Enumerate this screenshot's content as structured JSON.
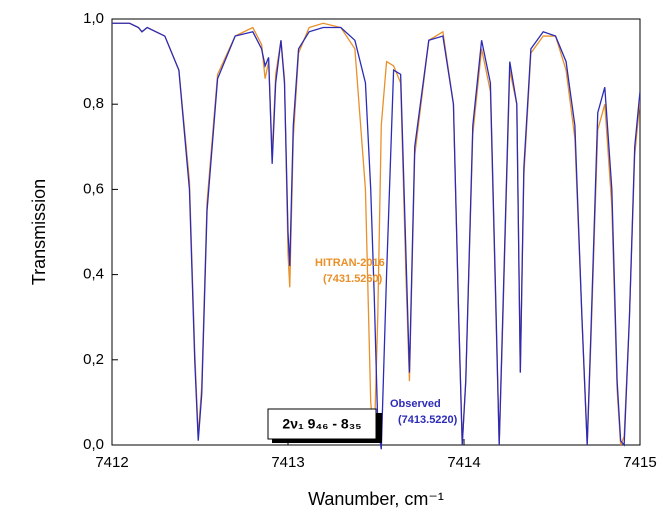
{
  "chart_data": {
    "type": "line",
    "xlabel": "Wanumber, cm⁻¹",
    "ylabel": "Transmission",
    "xlim": [
      7412,
      7415
    ],
    "xticks": [
      7412,
      7413,
      7414,
      7415
    ],
    "ylim": [
      0,
      1
    ],
    "yticks": [
      {
        "value": 0,
        "label": "0,0"
      },
      {
        "value": 0.2,
        "label": "0,2"
      },
      {
        "value": 0.4,
        "label": "0,4"
      },
      {
        "value": 0.6,
        "label": "0,6"
      },
      {
        "value": 0.8,
        "label": "0,8"
      },
      {
        "value": 1,
        "label": "1,0"
      }
    ],
    "x": [
      7412.0,
      7412.1,
      7412.15,
      7412.17,
      7412.2,
      7412.3,
      7412.38,
      7412.44,
      7412.47,
      7412.49,
      7412.51,
      7412.54,
      7412.6,
      7412.7,
      7412.8,
      7412.85,
      7412.87,
      7412.89,
      7412.91,
      7412.93,
      7412.96,
      7412.98,
      7413.0,
      7413.01,
      7413.03,
      7413.06,
      7413.12,
      7413.2,
      7413.3,
      7413.38,
      7413.44,
      7413.47,
      7413.49,
      7413.51,
      7413.53,
      7413.56,
      7413.6,
      7413.64,
      7413.67,
      7413.69,
      7413.72,
      7413.8,
      7413.88,
      7413.94,
      7413.97,
      7413.99,
      7414.01,
      7414.05,
      7414.1,
      7414.15,
      7414.18,
      7414.2,
      7414.22,
      7414.26,
      7414.3,
      7414.32,
      7414.34,
      7414.38,
      7414.45,
      7414.52,
      7414.58,
      7414.63,
      7414.67,
      7414.7,
      7414.72,
      7414.76,
      7414.8,
      7414.84,
      7414.87,
      7414.89,
      7414.91,
      7414.94,
      7414.97,
      7415.0
    ],
    "series": [
      {
        "color": "#e8902a",
        "values": [
          0.99,
          0.99,
          0.98,
          0.97,
          0.98,
          0.96,
          0.88,
          0.62,
          0.22,
          0.02,
          0.14,
          0.57,
          0.87,
          0.96,
          0.98,
          0.94,
          0.86,
          0.9,
          0.68,
          0.87,
          0.95,
          0.86,
          0.45,
          0.37,
          0.72,
          0.92,
          0.98,
          0.99,
          0.98,
          0.93,
          0.6,
          0.1,
          0.01,
          0.3,
          0.75,
          0.9,
          0.89,
          0.85,
          0.4,
          0.15,
          0.68,
          0.95,
          0.97,
          0.8,
          0.3,
          0.0,
          0.15,
          0.73,
          0.93,
          0.83,
          0.33,
          0.0,
          0.28,
          0.88,
          0.8,
          0.17,
          0.63,
          0.92,
          0.96,
          0.96,
          0.88,
          0.72,
          0.3,
          0.0,
          0.23,
          0.74,
          0.8,
          0.56,
          0.13,
          0.0,
          0.02,
          0.3,
          0.68,
          0.81
        ]
      },
      {
        "color": "#2b2bb8",
        "values": [
          0.99,
          0.99,
          0.98,
          0.97,
          0.98,
          0.96,
          0.88,
          0.6,
          0.2,
          0.01,
          0.12,
          0.55,
          0.86,
          0.96,
          0.97,
          0.93,
          0.89,
          0.91,
          0.66,
          0.85,
          0.95,
          0.85,
          0.5,
          0.42,
          0.75,
          0.93,
          0.97,
          0.98,
          0.98,
          0.95,
          0.85,
          0.6,
          0.35,
          0.05,
          -0.01,
          0.4,
          0.88,
          0.87,
          0.45,
          0.17,
          0.7,
          0.95,
          0.96,
          0.8,
          0.3,
          0.0,
          0.15,
          0.75,
          0.95,
          0.85,
          0.35,
          0.0,
          0.3,
          0.9,
          0.8,
          0.17,
          0.65,
          0.93,
          0.97,
          0.96,
          0.9,
          0.75,
          0.3,
          0.0,
          0.25,
          0.78,
          0.84,
          0.6,
          0.15,
          0.01,
          0.0,
          0.3,
          0.7,
          0.83
        ]
      }
    ],
    "annotations": [
      {
        "lines": [
          "HITRAN-2016",
          "(7431.5260)"
        ],
        "color": "#e8902a"
      },
      {
        "lines": [
          "Observed",
          "(7413.5220)"
        ],
        "color": "#2b2bb8"
      }
    ],
    "box_label": "2ν₁ 9₄₆ - 8₃₅"
  }
}
